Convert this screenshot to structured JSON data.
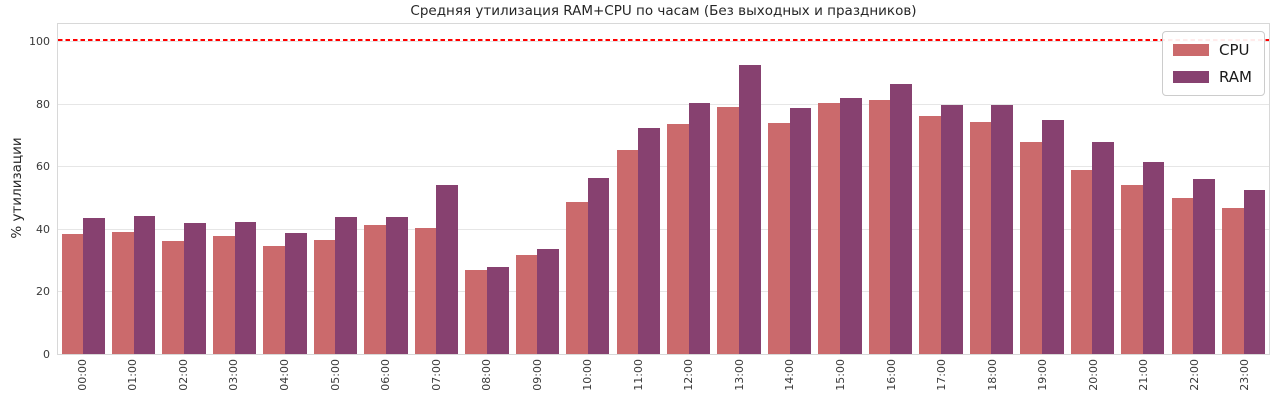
{
  "chart_data": {
    "type": "bar",
    "title": "Средняя утилизация RAM+CPU по часам (Без выходных и праздников)",
    "xlabel": "",
    "ylabel": "% утилизации",
    "categories": [
      "00:00",
      "01:00",
      "02:00",
      "03:00",
      "04:00",
      "05:00",
      "06:00",
      "07:00",
      "08:00",
      "09:00",
      "10:00",
      "11:00",
      "12:00",
      "13:00",
      "14:00",
      "15:00",
      "16:00",
      "17:00",
      "18:00",
      "19:00",
      "20:00",
      "21:00",
      "22:00",
      "23:00"
    ],
    "series": [
      {
        "name": "CPU",
        "color": "#cb6a6c",
        "values": [
          38.4,
          39.0,
          36.1,
          37.8,
          34.6,
          36.4,
          41.2,
          40.4,
          26.7,
          31.7,
          48.7,
          65.2,
          73.5,
          79.0,
          73.9,
          80.3,
          81.3,
          76.2,
          74.0,
          67.6,
          58.9,
          54.1,
          49.9,
          46.7
        ]
      },
      {
        "name": "RAM",
        "color": "#874170",
        "values": [
          43.3,
          44.2,
          41.8,
          42.1,
          38.6,
          43.8,
          43.9,
          54.1,
          27.9,
          33.4,
          56.1,
          72.3,
          80.2,
          92.3,
          78.7,
          81.9,
          86.3,
          79.4,
          79.5,
          74.8,
          67.7,
          61.3,
          55.8,
          52.4
        ]
      }
    ],
    "yticks": [
      0,
      20,
      40,
      60,
      80,
      100
    ],
    "ylim": [
      0,
      106
    ],
    "grid": true,
    "legend_position": "upper right",
    "reference_line": {
      "value": 100,
      "color": "#ff0000",
      "style": "dashed"
    }
  }
}
